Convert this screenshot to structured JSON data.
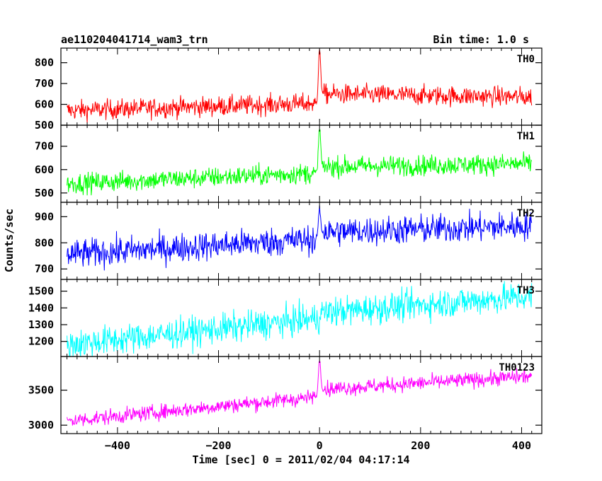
{
  "header": {
    "left_title": "ae110204041714_wam3_trn",
    "right_title": "Bin time: 1.0 s"
  },
  "chart_data": {
    "type": "line",
    "xlabel": "Time [sec] 0 = 2011/02/04 04:17:14",
    "ylabel": "Counts/sec",
    "xlim": [
      -512,
      440
    ],
    "xticks": [
      -400,
      -200,
      0,
      200,
      400
    ],
    "xtick_labels": [
      "−400",
      "−200",
      "0",
      "200",
      "400"
    ],
    "x_range": [
      -500,
      420
    ],
    "bin_time_s": 1.0,
    "panels": [
      {
        "name": "TH0",
        "color": "#ff0000",
        "ylim": [
          500,
          870
        ],
        "yticks": [
          500,
          600,
          700,
          800
        ],
        "ytick_labels": [
          "500",
          "600",
          "700",
          "800"
        ],
        "trend": [
          570,
          635
        ],
        "post_level": 650,
        "noise": 24,
        "peak": {
          "x": 0,
          "value": 860
        }
      },
      {
        "name": "TH1",
        "color": "#00ff00",
        "ylim": [
          460,
          790
        ],
        "yticks": [
          500,
          600,
          700
        ],
        "ytick_labels": [
          "500",
          "600",
          "700"
        ],
        "trend": [
          540,
          625
        ],
        "post_level": 612,
        "noise": 22,
        "peak": {
          "x": 0,
          "value": 780
        }
      },
      {
        "name": "TH2",
        "color": "#0000ff",
        "ylim": [
          660,
          955
        ],
        "yticks": [
          700,
          800,
          900
        ],
        "ytick_labels": [
          "700",
          "800",
          "900"
        ],
        "trend": [
          755,
          865
        ],
        "post_level": 840,
        "noise": 28,
        "peak": {
          "x": 0,
          "value": 930
        }
      },
      {
        "name": "TH3",
        "color": "#00ffff",
        "ylim": [
          1110,
          1570
        ],
        "yticks": [
          1200,
          1300,
          1400,
          1500
        ],
        "ytick_labels": [
          "1200",
          "1300",
          "1400",
          "1500"
        ],
        "trend": [
          1180,
          1470
        ],
        "post_level": 1370,
        "noise": 45,
        "peak": null
      },
      {
        "name": "TH0123",
        "color": "#ff00ff",
        "ylim": [
          2880,
          3980
        ],
        "yticks": [
          3000,
          3500
        ],
        "ytick_labels": [
          "3000",
          "3500"
        ],
        "trend": [
          3060,
          3700
        ],
        "post_level": 3510,
        "noise": 55,
        "peak": {
          "x": 0,
          "value": 3950
        }
      }
    ]
  }
}
